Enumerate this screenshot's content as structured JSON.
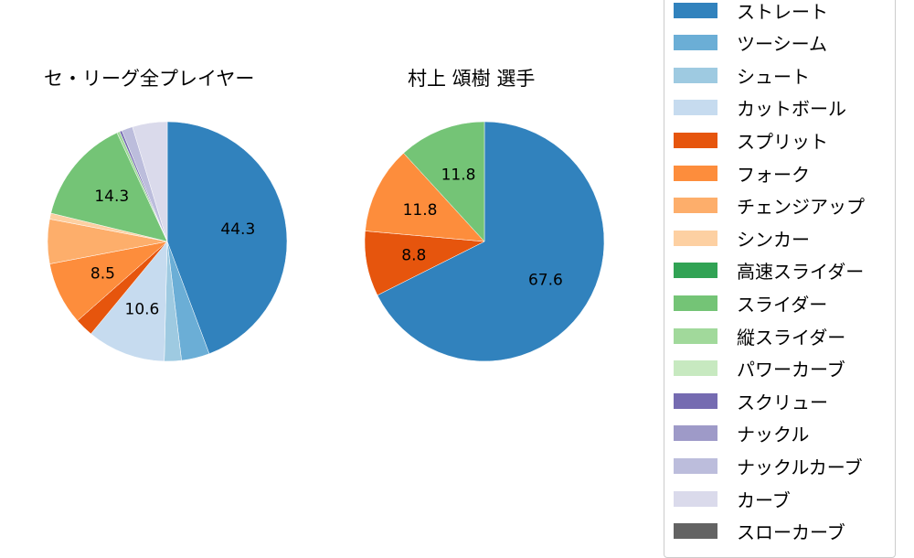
{
  "chart_data": [
    {
      "type": "pie",
      "title": "セ・リーグ全プレイヤー",
      "categories": [
        "ストレート",
        "ツーシーム",
        "シュート",
        "カットボール",
        "スプリット",
        "フォーク",
        "チェンジアップ",
        "シンカー",
        "高速スライダー",
        "スライダー",
        "縦スライダー",
        "パワーカーブ",
        "スクリュー",
        "ナックル",
        "ナックルカーブ",
        "カーブ",
        "スローカーブ"
      ],
      "values": [
        44.3,
        3.8,
        2.3,
        10.6,
        2.5,
        8.5,
        6.0,
        0.8,
        0.0,
        14.3,
        0.4,
        0.0,
        0.3,
        0.0,
        1.5,
        4.7,
        0.0
      ],
      "labels_shown": [
        "44.3",
        "10.6",
        "8.5",
        "14.3"
      ],
      "start_angle": 90,
      "direction": "clockwise"
    },
    {
      "type": "pie",
      "title": "村上 頌樹  選手",
      "categories": [
        "ストレート",
        "スプリット",
        "フォーク",
        "スライダー"
      ],
      "values": [
        67.6,
        8.8,
        11.8,
        11.8
      ],
      "labels_shown": [
        "67.6",
        "8.8",
        "11.8",
        "11.8"
      ],
      "start_angle": 90,
      "direction": "clockwise"
    }
  ],
  "legend": {
    "items": [
      {
        "label": "ストレート",
        "color": "#3182bd"
      },
      {
        "label": "ツーシーム",
        "color": "#6baed6"
      },
      {
        "label": "シュート",
        "color": "#9ecae1"
      },
      {
        "label": "カットボール",
        "color": "#c6dbef"
      },
      {
        "label": "スプリット",
        "color": "#e6550d"
      },
      {
        "label": "フォーク",
        "color": "#fd8d3c"
      },
      {
        "label": "チェンジアップ",
        "color": "#fdae6b"
      },
      {
        "label": "シンカー",
        "color": "#fdd0a2"
      },
      {
        "label": "高速スライダー",
        "color": "#31a354"
      },
      {
        "label": "スライダー",
        "color": "#74c476"
      },
      {
        "label": "縦スライダー",
        "color": "#a1d99b"
      },
      {
        "label": "パワーカーブ",
        "color": "#c7e9c0"
      },
      {
        "label": "スクリュー",
        "color": "#756bb1"
      },
      {
        "label": "ナックル",
        "color": "#9e9ac8"
      },
      {
        "label": "ナックルカーブ",
        "color": "#bcbddc"
      },
      {
        "label": "カーブ",
        "color": "#dadaeb"
      },
      {
        "label": "スローカーブ",
        "color": "#636363"
      }
    ]
  },
  "titles": {
    "left": "セ・リーグ全プレイヤー",
    "right": "村上 頌樹  選手"
  }
}
